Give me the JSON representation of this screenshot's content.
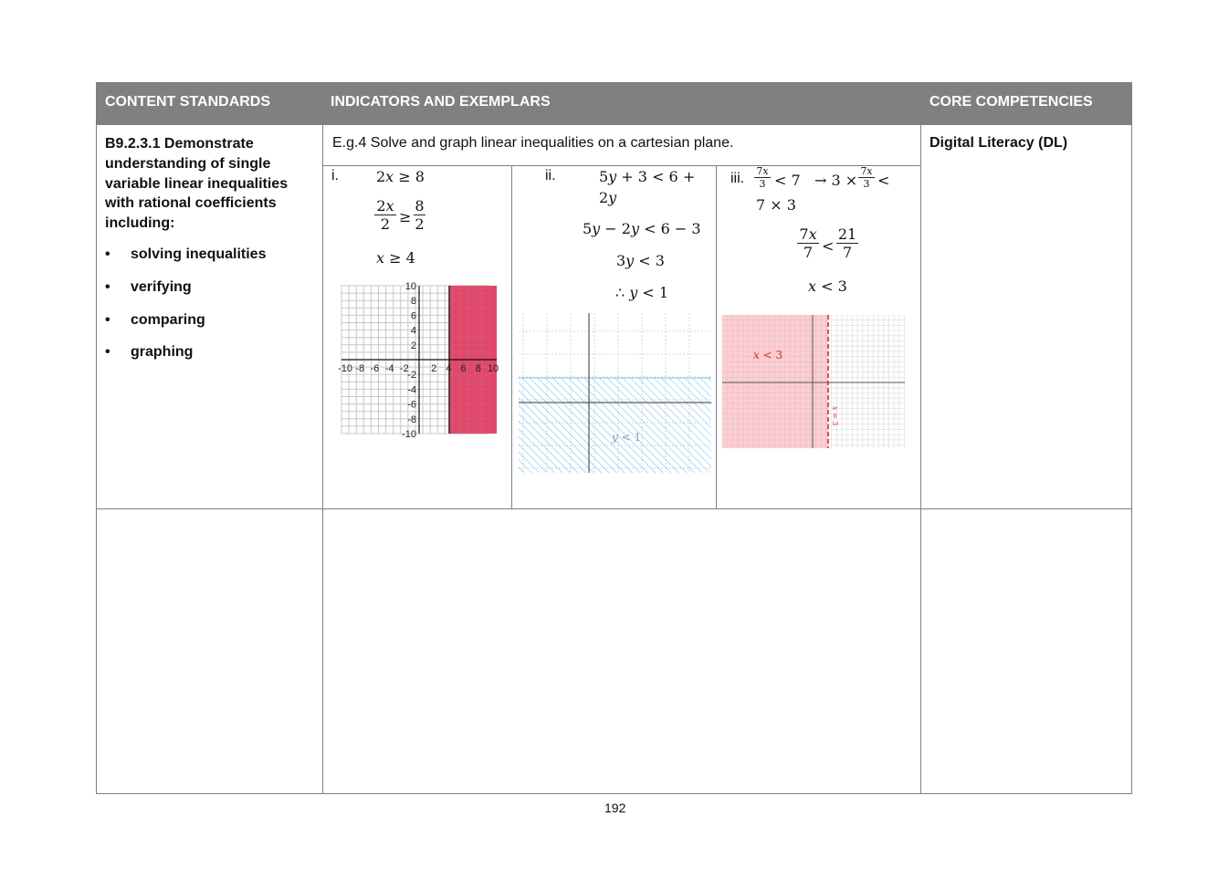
{
  "headers": {
    "col1": "CONTENT STANDARDS",
    "col2": "INDICATORS AND EXEMPLARS",
    "col3": "CORE COMPETENCIES"
  },
  "standard": {
    "lines": [
      "B9.2.3.1 Demonstrate",
      "understanding of single",
      "variable linear inequalities",
      "with rational coefficients",
      "including:"
    ],
    "bullets": [
      "solving inequalities",
      "verifying",
      "comparing",
      "graphing"
    ]
  },
  "indicator": "E.g.4 Solve and graph linear inequalities on a cartesian plane.",
  "competency": "Digital Literacy (DL)",
  "examples": {
    "i": {
      "label": "i.",
      "step1": "2𝑥 ≥ 8",
      "frac1_num": "2𝑥",
      "frac1_den": "2",
      "rel": "≥",
      "frac2_num": "8",
      "frac2_den": "2",
      "result": "𝑥 ≥ 4"
    },
    "ii": {
      "label": "ii.",
      "step1a": "5𝑦 + 3 < 6 +",
      "step1b": "2𝑦",
      "step2": "5𝑦 − 2𝑦 < 6 − 3",
      "step3": "3𝑦 < 3",
      "result": "∴ 𝑦 < 1"
    },
    "iii": {
      "label": "iii.",
      "frac_num": "7𝑥",
      "frac_den": "3",
      "step1a": "< 7",
      "step1b": "→ 3 ×",
      "step1c": "<",
      "step1d": "7 × 3",
      "frac2_num": "7𝑥",
      "frac2_den": "7",
      "rel": "<",
      "frac3_num": "21",
      "frac3_den": "7",
      "result": "𝑥 < 3"
    }
  },
  "graph1": {
    "x_ticks": [
      "-10",
      "-8",
      "-6",
      "-4",
      "-2",
      "2",
      "4",
      "6",
      "8",
      "10"
    ],
    "y_ticks": [
      "10",
      "8",
      "6",
      "4",
      "2",
      "-2",
      "-4",
      "-6",
      "-8",
      "-10"
    ],
    "shade_color": "#e0476a",
    "boundary": 4
  },
  "graph2": {
    "label": "𝑦 < 1",
    "hatch_color": "#7cc6e8"
  },
  "graph3": {
    "label": "𝑥 < 3",
    "line_label": "𝑥 = 3",
    "shade_color": "#f8c8cc",
    "line_color": "#d9262e"
  },
  "page_number": "192"
}
